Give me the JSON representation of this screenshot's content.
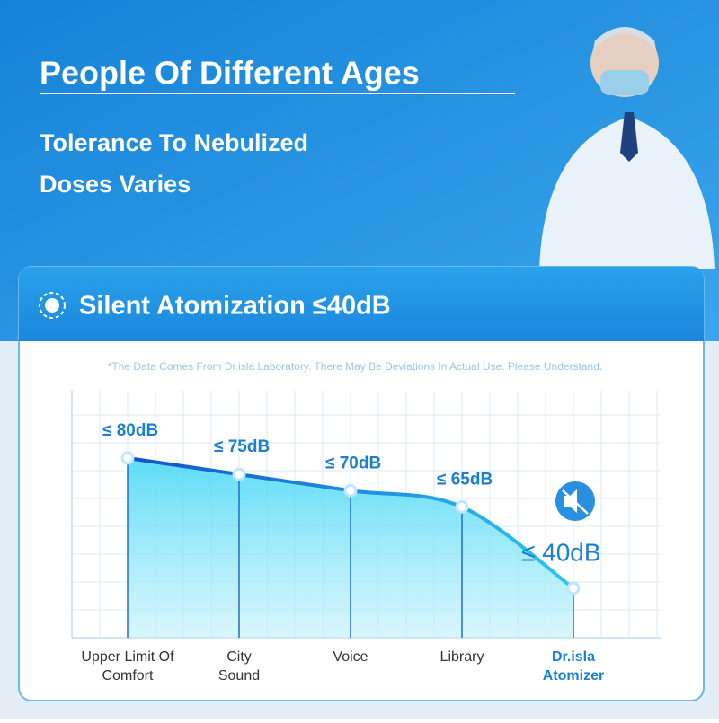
{
  "header": {
    "title": "People Of Different Ages",
    "subtitle_lines": [
      "Tolerance To Nebulized",
      "Doses Varies"
    ]
  },
  "card": {
    "title": "Silent Atomization ≤40dB",
    "note": "*The Data Comes From Dr.isla Laboratory. There May Be Deviations In Actual Use. Please Understand."
  },
  "chart_data": {
    "type": "line",
    "categories": [
      [
        "Upper Limit Of",
        "Comfort"
      ],
      [
        "City",
        "Sound"
      ],
      [
        "Voice"
      ],
      [
        "Library"
      ],
      [
        "Dr.isla",
        "Atomizer"
      ]
    ],
    "values": [
      80,
      75,
      70,
      65,
      40
    ],
    "value_labels": [
      "≤ 80dB",
      "≤ 75dB",
      "≤ 70dB",
      "≤ 65dB",
      "≤ 40dB"
    ],
    "color": "#1565d8",
    "highlight_color": "#1a7fd0"
  }
}
